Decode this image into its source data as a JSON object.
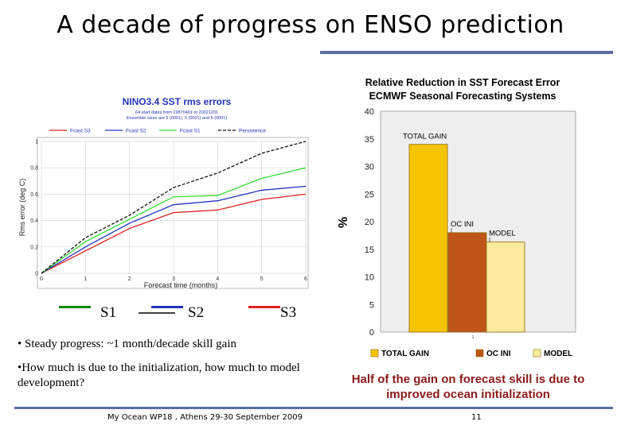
{
  "slide": {
    "title": "A decade of progress on ENSO prediction",
    "bullet1": "• Steady progress: ~1 month/decade skill gain",
    "bullet2": "•How much is due to the initialization, how much to model development?",
    "conclusion": "Half of the gain on forecast skill is due to improved ocean initialization",
    "footer_left": "My Ocean WP18 , Athens 29-30 September 2009",
    "footer_page": "11",
    "legend": [
      {
        "label": "S1",
        "color": "#0a8a0a"
      },
      {
        "label": "S2",
        "color": "#2233bb"
      },
      {
        "label": "S3",
        "color": "#dd2222"
      }
    ]
  },
  "chart_data": [
    {
      "type": "line",
      "title": "NINO3.4 SST rms errors",
      "subtitle_lines": [
        "64 start dates from 19870401 to 20021201",
        "Ensemble sizes are 5 (0001), 5 (0001) and 5 (0001)"
      ],
      "xlabel": "Forecast time (months)",
      "ylabel": "Rms error (deg C)",
      "xlim": [
        0,
        6
      ],
      "ylim": [
        0,
        1
      ],
      "x_ticks": [
        "0",
        "1",
        "2",
        "3",
        "4",
        "5",
        "6"
      ],
      "y_ticks": [
        "0",
        "0.2",
        "0.4",
        "0.6",
        "0.8",
        "1"
      ],
      "x": [
        0,
        1,
        2,
        3,
        4,
        5,
        6
      ],
      "series": [
        {
          "name": "Fcast S3",
          "color": "#e02020",
          "dash": "",
          "values": [
            0,
            0.17,
            0.34,
            0.46,
            0.48,
            0.56,
            0.6
          ]
        },
        {
          "name": "Fcast S2",
          "color": "#2030c0",
          "dash": "",
          "values": [
            0,
            0.2,
            0.38,
            0.52,
            0.55,
            0.63,
            0.66
          ]
        },
        {
          "name": "Fcast S1",
          "color": "#33dd33",
          "dash": "",
          "values": [
            0,
            0.24,
            0.41,
            0.58,
            0.59,
            0.72,
            0.8
          ]
        },
        {
          "name": "Persistence",
          "color": "#111111",
          "dash": "4,2",
          "values": [
            0,
            0.27,
            0.44,
            0.65,
            0.76,
            0.91,
            1.0
          ]
        }
      ],
      "grid": true,
      "legend_position": "top"
    },
    {
      "type": "bar",
      "title": "Relative Reduction in SST Forecast Error",
      "subtitle": "ECMWF Seasonal Forecasting Systems",
      "ylabel": "%",
      "ylim": [
        0,
        40
      ],
      "y_ticks": [
        "0",
        "5",
        "10",
        "15",
        "20",
        "25",
        "30",
        "35",
        "40"
      ],
      "x_tick": "1",
      "bars": [
        {
          "name": "TOTAL GAIN",
          "value": 34,
          "color": "#f6c300"
        },
        {
          "name": "OC INI",
          "value": 18,
          "color": "#c0551a"
        },
        {
          "name": "MODEL",
          "value": 16.3,
          "color": "#fbeaa0"
        }
      ],
      "legend": [
        "TOTAL GAIN",
        "OC INI",
        "MODEL"
      ],
      "legend_position": "bottom"
    }
  ]
}
